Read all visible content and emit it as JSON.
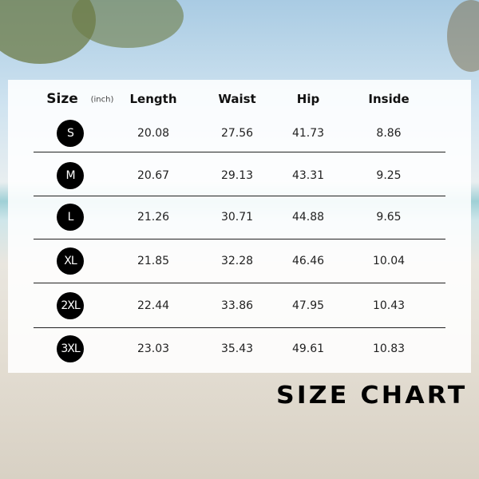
{
  "header": {
    "size": "Size",
    "unit": "(inch)",
    "columns": [
      "Length",
      "Waist",
      "Hip",
      "Inside"
    ]
  },
  "rows": [
    {
      "size": "S",
      "values": [
        "20.08",
        "27.56",
        "41.73",
        "8.86"
      ]
    },
    {
      "size": "M",
      "values": [
        "20.67",
        "29.13",
        "43.31",
        "9.25"
      ]
    },
    {
      "size": "L",
      "values": [
        "21.26",
        "30.71",
        "44.88",
        "9.65"
      ]
    },
    {
      "size": "XL",
      "values": [
        "21.85",
        "32.28",
        "46.46",
        "10.04"
      ]
    },
    {
      "size": "2XL",
      "values": [
        "22.44",
        "33.86",
        "47.95",
        "10.43"
      ]
    },
    {
      "size": "3XL",
      "values": [
        "23.03",
        "35.43",
        "49.61",
        "10.83"
      ]
    }
  ],
  "title": "SIZE CHART"
}
